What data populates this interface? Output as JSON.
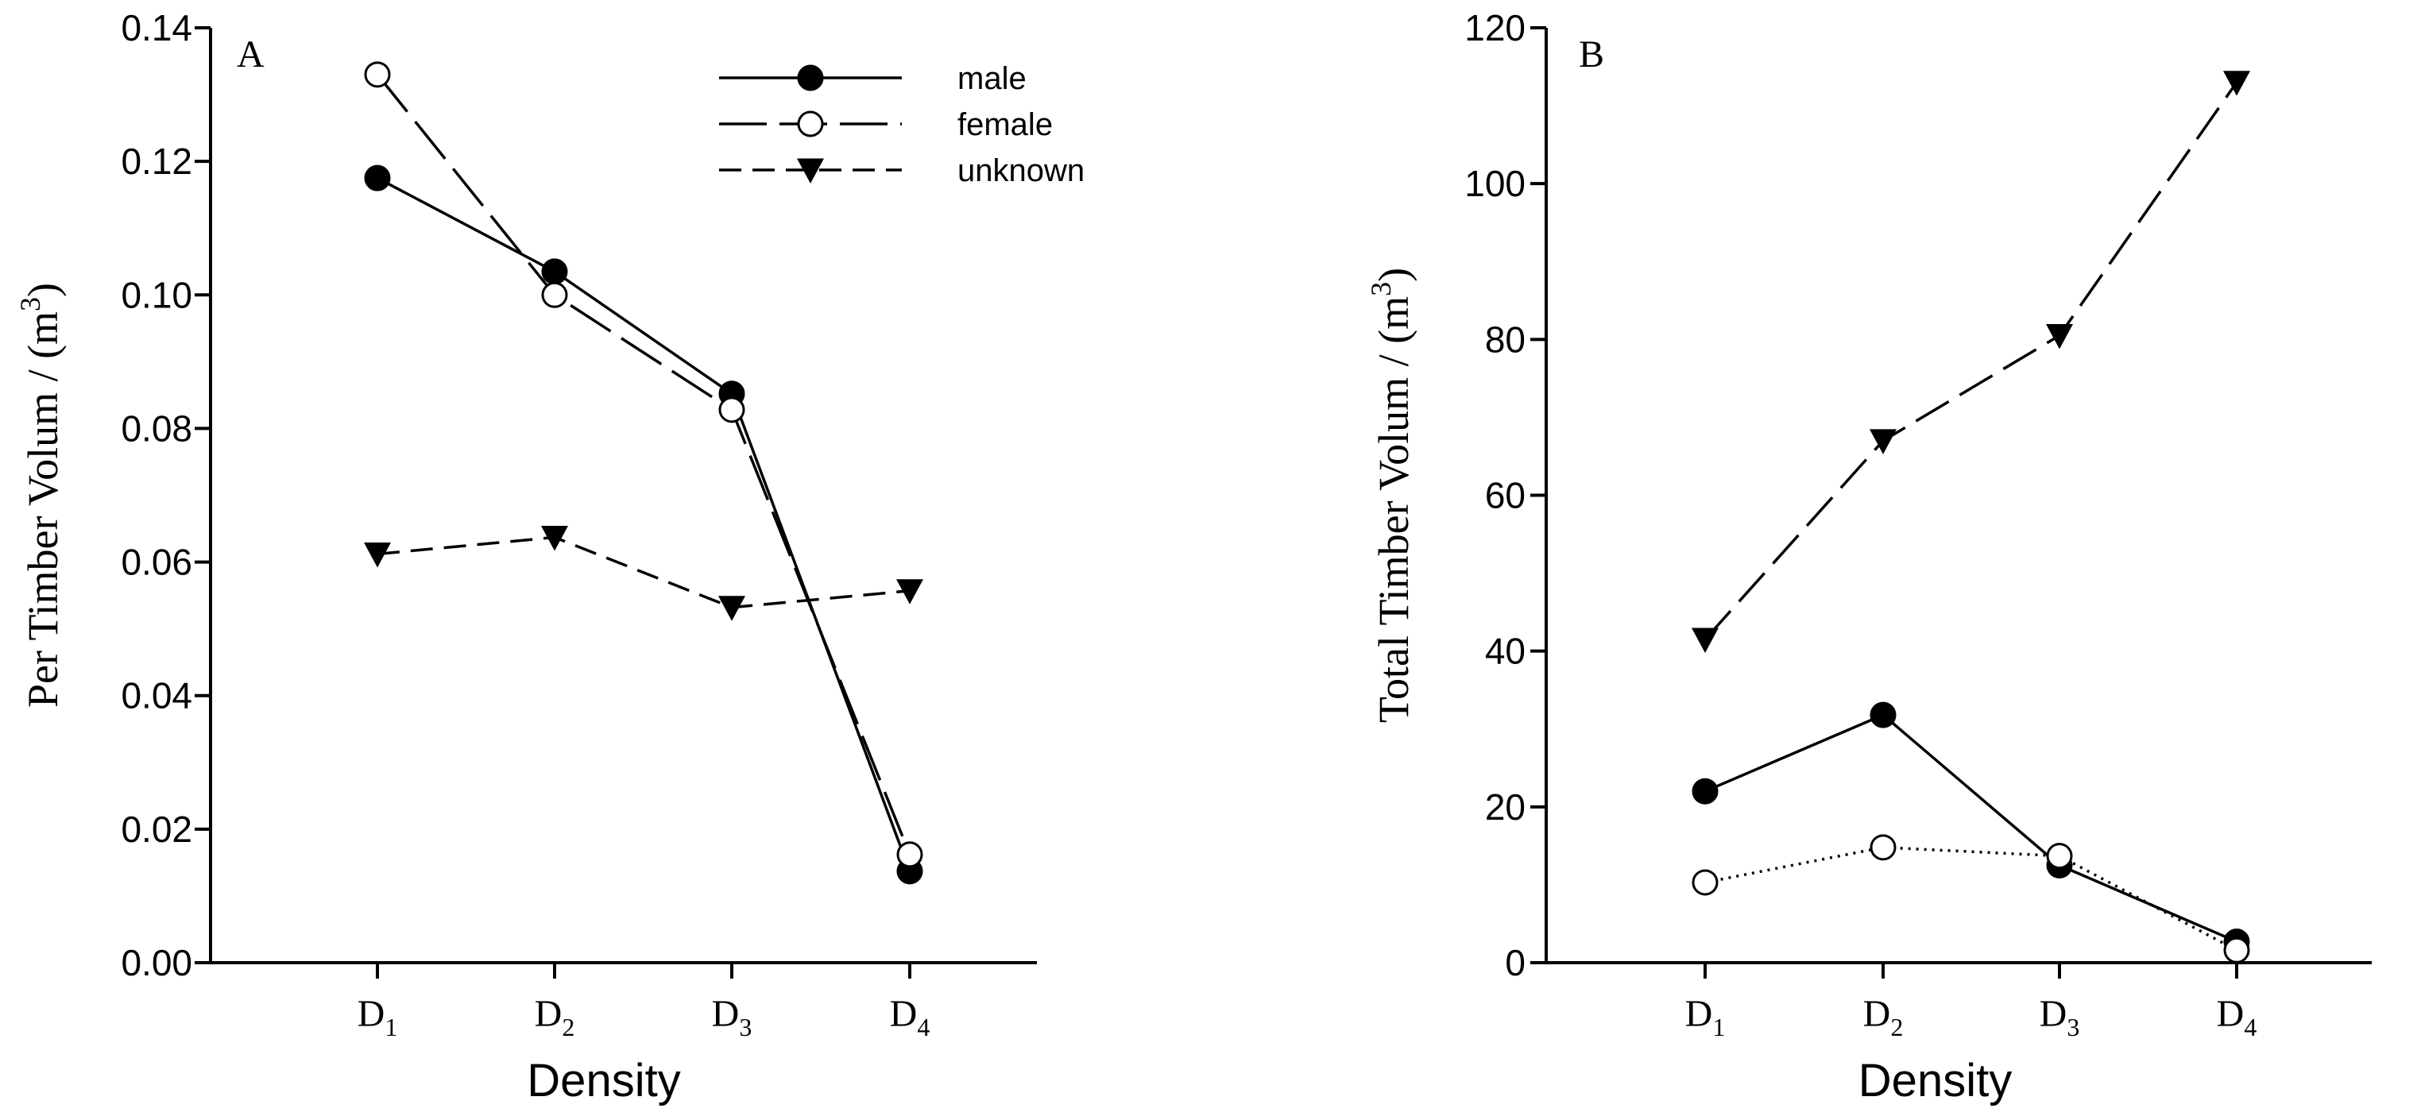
{
  "chart_data": [
    {
      "type": "line",
      "panel": "A",
      "categories": [
        "D",
        "D",
        "D",
        "D"
      ],
      "category_subscripts": [
        "1",
        "2",
        "3",
        "4"
      ],
      "xlabel": "Density",
      "ylabel": "Per Timber Volum / (m",
      "ylabel_sup": "3",
      "ylabel_close": ")",
      "ylim": [
        0,
        0.14
      ],
      "yticks": [
        "0.00",
        "0.02",
        "0.04",
        "0.06",
        "0.08",
        "0.10",
        "0.12",
        "0.14"
      ],
      "legend_position": "top-right",
      "series": [
        {
          "name": "male",
          "values": [
            0.1175,
            0.1035,
            0.0852,
            0.0137
          ]
        },
        {
          "name": "female",
          "values": [
            0.133,
            0.1,
            0.0828,
            0.0162
          ]
        },
        {
          "name": "unknown",
          "values": [
            0.0612,
            0.0637,
            0.0532,
            0.0557
          ]
        }
      ]
    },
    {
      "type": "line",
      "panel": "B",
      "categories": [
        "D",
        "D",
        "D",
        "D"
      ],
      "category_subscripts": [
        "1",
        "2",
        "3",
        "4"
      ],
      "xlabel": "Density",
      "ylabel": "Total Timber Volum / (m",
      "ylabel_sup": "3",
      "ylabel_close": ")",
      "ylim": [
        0,
        120
      ],
      "yticks": [
        "0",
        "20",
        "40",
        "60",
        "80",
        "100",
        "120"
      ],
      "series": [
        {
          "name": "male",
          "values": [
            22.0,
            31.8,
            12.5,
            2.7
          ]
        },
        {
          "name": "female",
          "values": [
            10.3,
            14.8,
            13.7,
            1.6
          ]
        },
        {
          "name": "unknown",
          "values": [
            41.5,
            67.0,
            80.5,
            113.0
          ]
        }
      ]
    }
  ],
  "styles": {
    "male": {
      "dash": "",
      "marker": "circle-filled",
      "color": "#000000"
    },
    "female_A": {
      "dash": "60,16",
      "marker": "circle-open",
      "color": "#000000"
    },
    "female_B": {
      "dash": "3,7",
      "marker": "circle-open",
      "color": "#000000"
    },
    "unknown_A": {
      "dash": "28,14",
      "marker": "triangle-down-filled",
      "color": "#000000"
    },
    "unknown_B": {
      "dash": "48,16",
      "marker": "triangle-down-filled",
      "color": "#000000"
    }
  }
}
